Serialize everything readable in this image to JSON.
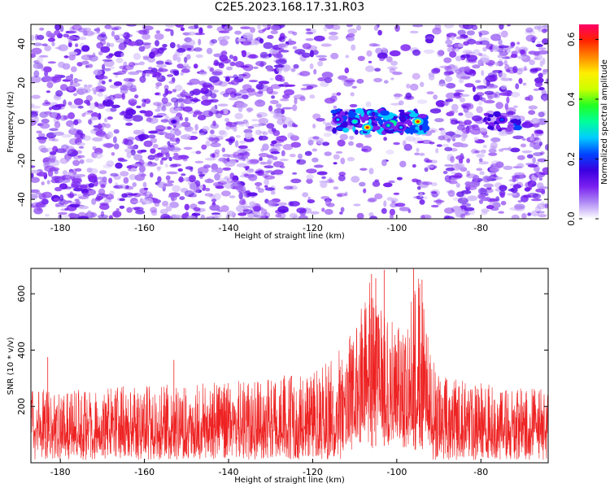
{
  "title": "C2E5.2023.168.17.31.R03",
  "colors": {
    "snr_line": "#ee2222",
    "axis": "#000000",
    "spectrogram_base": "#7a1ff0"
  },
  "chart_data": [
    {
      "type": "heatmap",
      "title": "C2E5.2023.168.17.31.R03",
      "xlabel": "Height of straight line (km)",
      "ylabel": "Frequency (Hz)",
      "xlim": [
        -187,
        -64
      ],
      "ylim": [
        -50,
        50
      ],
      "x_ticks": [
        -180,
        -160,
        -140,
        -120,
        -100,
        -80
      ],
      "y_ticks": [
        -40,
        -20,
        0,
        20,
        40
      ],
      "colorbar": {
        "label": "Normalized spectral amplitude",
        "range": [
          0.0,
          0.65
        ],
        "ticks": [
          0.0,
          0.2,
          0.4,
          0.6
        ],
        "stops": [
          "#ffffff",
          "#b08cf5",
          "#7a1ff0",
          "#3a00e0",
          "#0044ff",
          "#00ccff",
          "#00ff99",
          "#22ff22",
          "#ccff00",
          "#ffee00",
          "#ff8800",
          "#ff2200",
          "#ff0066"
        ]
      },
      "hotspots": [
        {
          "x": -107,
          "y": -3,
          "value": 0.62
        },
        {
          "x": -95,
          "y": 0,
          "value": 0.58
        },
        {
          "x": -110,
          "y": 0,
          "value": 0.35
        },
        {
          "x": -102,
          "y": -2,
          "value": 0.3
        },
        {
          "x": -114,
          "y": 1,
          "value": 0.25
        },
        {
          "x": -99,
          "y": -3,
          "value": 0.25
        },
        {
          "x": -75,
          "y": 1,
          "value": 0.2
        },
        {
          "x": -153,
          "y": 0,
          "value": 0.15
        }
      ],
      "noise_level": 0.1
    },
    {
      "type": "line",
      "xlabel": "Height of straight line (km)",
      "ylabel": "SNR (10 * v/v)",
      "xlim": [
        -187,
        -64
      ],
      "ylim": [
        0,
        690
      ],
      "x_ticks": [
        -180,
        -160,
        -140,
        -120,
        -100,
        -80
      ],
      "y_ticks": [
        200,
        400,
        600
      ],
      "series": [
        {
          "name": "SNR",
          "envelope": [
            {
              "x": -187,
              "upper": 260
            },
            {
              "x": -150,
              "upper": 280
            },
            {
              "x": -130,
              "upper": 300
            },
            {
              "x": -120,
              "upper": 330
            },
            {
              "x": -114,
              "upper": 400
            },
            {
              "x": -110,
              "upper": 480
            },
            {
              "x": -107,
              "upper": 660
            },
            {
              "x": -104,
              "upper": 560
            },
            {
              "x": -101,
              "upper": 500
            },
            {
              "x": -98,
              "upper": 480
            },
            {
              "x": -95,
              "upper": 680
            },
            {
              "x": -92,
              "upper": 400
            },
            {
              "x": -88,
              "upper": 300
            },
            {
              "x": -64,
              "upper": 260
            }
          ],
          "peaks": [
            {
              "x": -183,
              "value": 375
            },
            {
              "x": -153,
              "value": 365
            },
            {
              "x": -106,
              "value": 670
            },
            {
              "x": -105,
              "value": 655
            },
            {
              "x": -103,
              "value": 685
            },
            {
              "x": -96,
              "value": 690
            },
            {
              "x": -94,
              "value": 650
            }
          ],
          "baseline_mean": 120
        }
      ]
    }
  ]
}
